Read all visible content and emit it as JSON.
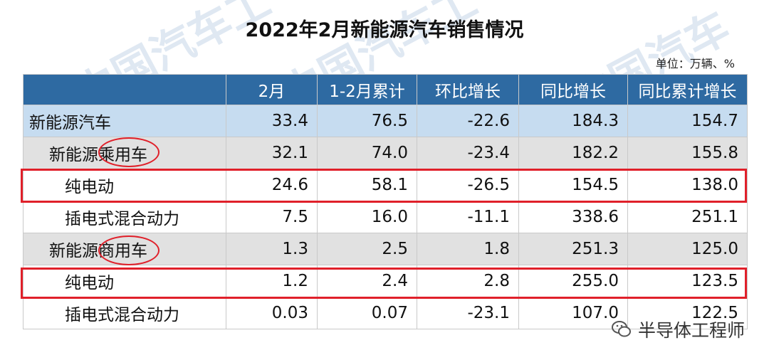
{
  "title": "2022年2月新能源汽车销售情况",
  "unit": "单位：万辆、%",
  "watermark": "中国汽车工",
  "headers": [
    "",
    "2月",
    "1-2月累计",
    "环比增长",
    "同比增长",
    "同比累计增长"
  ],
  "rows": [
    {
      "name": "新能源汽车",
      "values": [
        "33.4",
        "76.5",
        "-22.6",
        "184.3",
        "154.7"
      ]
    },
    {
      "name": "新能源乘用车",
      "values": [
        "32.1",
        "74.0",
        "-23.4",
        "182.2",
        "155.8"
      ]
    },
    {
      "name": "纯电动",
      "values": [
        "24.6",
        "58.1",
        "-26.5",
        "154.5",
        "138.0"
      ]
    },
    {
      "name": "插电式混合动力",
      "values": [
        "7.5",
        "16.0",
        "-11.1",
        "338.6",
        "251.1"
      ]
    },
    {
      "name": "新能源商用车",
      "values": [
        "1.3",
        "2.5",
        "1.8",
        "251.3",
        "125.0"
      ]
    },
    {
      "name": "纯电动",
      "values": [
        "1.2",
        "2.4",
        "2.8",
        "255.0",
        "123.5"
      ]
    },
    {
      "name": "插电式混合动力",
      "values": [
        "0.03",
        "0.07",
        "-23.1",
        "107.0",
        "122.5"
      ]
    }
  ],
  "brand": "半导体工程师",
  "colors": {
    "header": "#2e6aa2",
    "level1": "#c6dcf0",
    "level2": "#e1e1e1",
    "highlight": "#e0202a"
  }
}
